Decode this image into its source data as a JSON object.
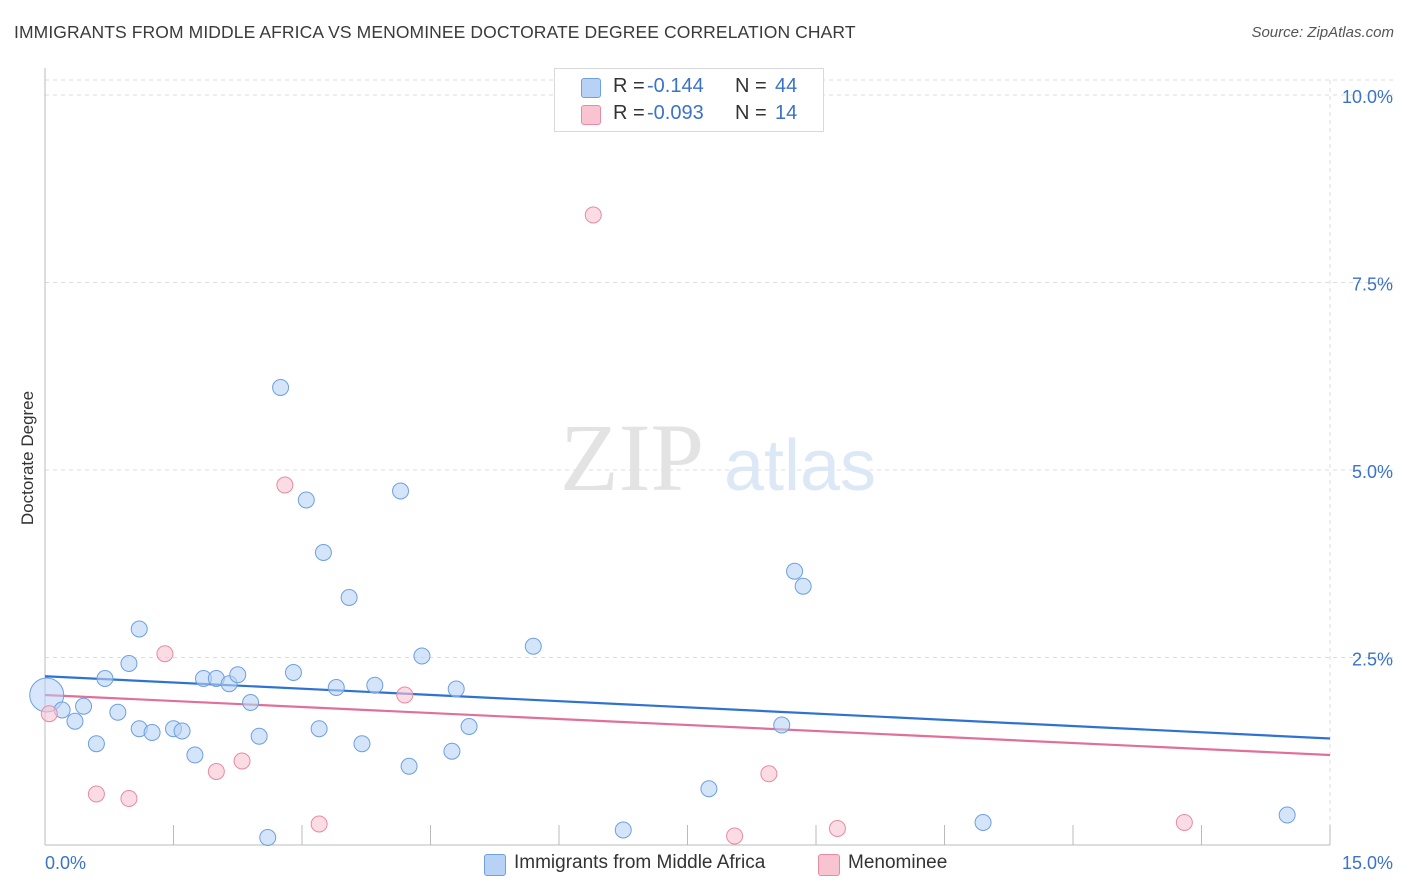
{
  "title": "IMMIGRANTS FROM MIDDLE AFRICA VS MENOMINEE DOCTORATE DEGREE CORRELATION CHART",
  "source": "Source: ZipAtlas.com",
  "watermark": {
    "zip": "ZIP",
    "atlas": "atlas"
  },
  "colors": {
    "blue_fill": "#b7d2f5",
    "blue_edge": "#6fa0e0",
    "blue_line": "#2f72d3",
    "pink_fill": "#f8c4d2",
    "pink_edge": "#e98aa5",
    "pink_line": "#e0709a",
    "tick_label": "#3a73c9",
    "grid": "#dddddd"
  },
  "legend": {
    "rows": [
      {
        "r_label": "R =",
        "r_value": "-0.144",
        "n_label": "N =",
        "n_value": "44"
      },
      {
        "r_label": "R =",
        "r_value": "-0.093",
        "n_label": "N =",
        "n_value": "14"
      }
    ]
  },
  "bottom_legend": {
    "series1": "Immigrants from Middle Africa",
    "series2": "Menominee"
  },
  "chart_data": {
    "type": "scatter",
    "xlabel": "",
    "ylabel": "Doctorate Degree",
    "xlim": [
      0,
      15
    ],
    "ylim": [
      0,
      10.2
    ],
    "x_tick_labels": [
      "0.0%",
      "15.0%"
    ],
    "y_ticks": [
      2.5,
      5.0,
      7.5,
      10.0
    ],
    "y_tick_labels": [
      "2.5%",
      "5.0%",
      "7.5%",
      "10.0%"
    ],
    "grid": true,
    "legend_position": "top-center",
    "series": [
      {
        "name": "Immigrants from Middle Africa",
        "color": "#6fa0e0",
        "points": [
          [
            0.02,
            2.0
          ],
          [
            0.2,
            1.8
          ],
          [
            0.35,
            1.65
          ],
          [
            0.45,
            1.85
          ],
          [
            0.6,
            1.35
          ],
          [
            0.85,
            1.77
          ],
          [
            0.7,
            2.22
          ],
          [
            0.98,
            2.42
          ],
          [
            1.1,
            2.88
          ],
          [
            1.1,
            1.55
          ],
          [
            1.25,
            1.5
          ],
          [
            1.5,
            1.55
          ],
          [
            1.6,
            1.52
          ],
          [
            1.75,
            1.2
          ],
          [
            1.85,
            2.22
          ],
          [
            2.0,
            2.22
          ],
          [
            2.15,
            2.15
          ],
          [
            2.25,
            2.27
          ],
          [
            2.4,
            1.9
          ],
          [
            2.5,
            1.45
          ],
          [
            2.6,
            0.1
          ],
          [
            2.75,
            6.1
          ],
          [
            2.9,
            2.3
          ],
          [
            3.05,
            4.6
          ],
          [
            3.2,
            1.55
          ],
          [
            3.25,
            3.9
          ],
          [
            3.4,
            2.1
          ],
          [
            3.55,
            3.3
          ],
          [
            3.7,
            1.35
          ],
          [
            3.85,
            2.13
          ],
          [
            4.15,
            4.72
          ],
          [
            4.25,
            1.05
          ],
          [
            4.4,
            2.52
          ],
          [
            4.75,
            1.25
          ],
          [
            4.8,
            2.08
          ],
          [
            4.95,
            1.58
          ],
          [
            5.7,
            2.65
          ],
          [
            6.75,
            0.2
          ],
          [
            7.75,
            0.75
          ],
          [
            8.6,
            1.6
          ],
          [
            8.75,
            3.65
          ],
          [
            8.85,
            3.45
          ],
          [
            10.95,
            0.3
          ],
          [
            14.5,
            0.4
          ]
        ],
        "trend": [
          [
            0,
            2.25
          ],
          [
            15,
            1.42
          ]
        ]
      },
      {
        "name": "Menominee",
        "color": "#e98aa5",
        "points": [
          [
            0.05,
            1.75
          ],
          [
            0.6,
            0.68
          ],
          [
            0.98,
            0.62
          ],
          [
            1.4,
            2.55
          ],
          [
            2.0,
            0.98
          ],
          [
            2.3,
            1.12
          ],
          [
            2.8,
            4.8
          ],
          [
            3.2,
            0.28
          ],
          [
            4.2,
            2.0
          ],
          [
            6.4,
            8.4
          ],
          [
            8.05,
            0.12
          ],
          [
            8.45,
            0.95
          ],
          [
            9.25,
            0.22
          ],
          [
            13.3,
            0.3
          ]
        ],
        "trend": [
          [
            0,
            2.0
          ],
          [
            15,
            1.2
          ]
        ]
      }
    ]
  }
}
